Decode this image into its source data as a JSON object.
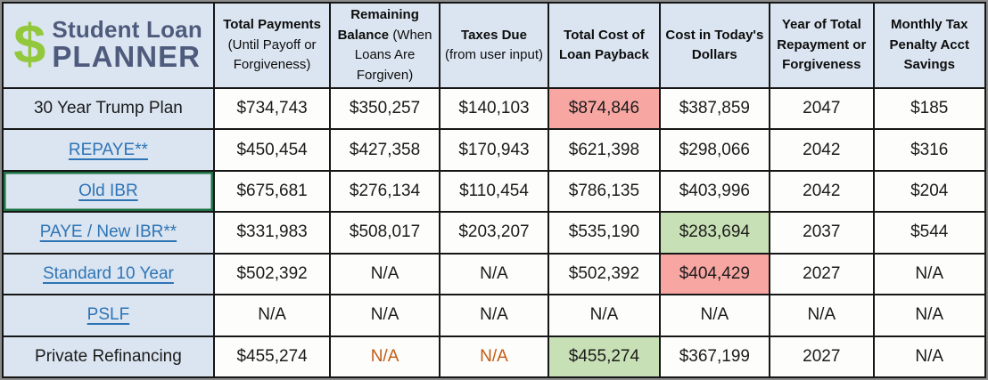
{
  "logo": {
    "dollar": "$",
    "line1": "Student Loan",
    "line2": "PLANNER"
  },
  "colors": {
    "panel_blue": "#dbe5f1",
    "red_highlight": "#f7a6a2",
    "green_highlight": "#c8e0b5",
    "link_blue": "#2e74b5",
    "orange_text": "#c55a11",
    "logo_green": "#93c83d",
    "logo_text_color": "#4e5b7c",
    "selection_green": "#1e7145"
  },
  "table": {
    "columns": [
      {
        "bold": "Total Payments",
        "normal": "(Until Payoff or Forgiveness)"
      },
      {
        "bold": "Remaining Balance",
        "normal": "(When Loans Are Forgiven)"
      },
      {
        "bold": "Taxes Due",
        "normal": "(from user input)"
      },
      {
        "bold": "Total Cost of Loan Payback",
        "normal": ""
      },
      {
        "bold": "Cost in Today's Dollars",
        "normal": ""
      },
      {
        "bold": "Year of Total Repayment or Forgiveness",
        "normal": ""
      },
      {
        "bold": "Monthly Tax Penalty Acct Savings",
        "normal": ""
      }
    ],
    "rows": [
      {
        "label": "30 Year Trump Plan",
        "is_link": false,
        "selected": false,
        "cells": [
          {
            "text": "$734,743"
          },
          {
            "text": "$350,257"
          },
          {
            "text": "$140,103"
          },
          {
            "text": "$874,846",
            "highlight": "red"
          },
          {
            "text": "$387,859"
          },
          {
            "text": "2047"
          },
          {
            "text": "$185"
          }
        ]
      },
      {
        "label": "REPAYE**",
        "is_link": true,
        "selected": false,
        "cells": [
          {
            "text": "$450,454"
          },
          {
            "text": "$427,358"
          },
          {
            "text": "$170,943"
          },
          {
            "text": "$621,398"
          },
          {
            "text": "$298,066"
          },
          {
            "text": "2042"
          },
          {
            "text": "$316"
          }
        ]
      },
      {
        "label": "Old IBR",
        "is_link": true,
        "selected": true,
        "cells": [
          {
            "text": "$675,681"
          },
          {
            "text": "$276,134"
          },
          {
            "text": "$110,454"
          },
          {
            "text": "$786,135"
          },
          {
            "text": "$403,996"
          },
          {
            "text": "2042"
          },
          {
            "text": "$204"
          }
        ]
      },
      {
        "label": "PAYE / New IBR**",
        "is_link": true,
        "selected": false,
        "cells": [
          {
            "text": "$331,983"
          },
          {
            "text": "$508,017"
          },
          {
            "text": "$203,207"
          },
          {
            "text": "$535,190"
          },
          {
            "text": "$283,694",
            "highlight": "green"
          },
          {
            "text": "2037"
          },
          {
            "text": "$544"
          }
        ]
      },
      {
        "label": "Standard 10 Year",
        "is_link": true,
        "selected": false,
        "cells": [
          {
            "text": "$502,392"
          },
          {
            "text": "N/A"
          },
          {
            "text": "N/A"
          },
          {
            "text": "$502,392"
          },
          {
            "text": "$404,429",
            "highlight": "red"
          },
          {
            "text": "2027"
          },
          {
            "text": "N/A"
          }
        ]
      },
      {
        "label": "PSLF",
        "is_link": true,
        "selected": false,
        "cells": [
          {
            "text": "N/A"
          },
          {
            "text": "N/A"
          },
          {
            "text": "N/A"
          },
          {
            "text": "N/A"
          },
          {
            "text": "N/A"
          },
          {
            "text": "N/A"
          },
          {
            "text": "N/A"
          }
        ]
      },
      {
        "label": "Private Refinancing",
        "is_link": false,
        "selected": false,
        "cells": [
          {
            "text": "$455,274"
          },
          {
            "text": "N/A",
            "text_color": "orange"
          },
          {
            "text": "N/A",
            "text_color": "orange"
          },
          {
            "text": "$455,274",
            "highlight": "green"
          },
          {
            "text": "$367,199"
          },
          {
            "text": "2027"
          },
          {
            "text": "N/A"
          }
        ]
      }
    ]
  }
}
